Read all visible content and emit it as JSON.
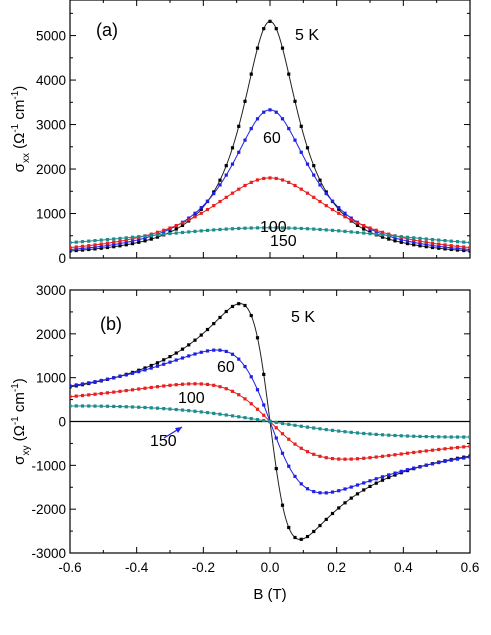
{
  "chart_data": [
    {
      "type": "line",
      "panel_label": "(a)",
      "ylabel": {
        "main": "σ",
        "sub": "xx",
        "unit_open": " (Ω",
        "unit_exp": "-1",
        "unit_mid": " cm",
        "unit_exp2": "-1",
        "unit_close": ")"
      },
      "xlim": [
        -0.6,
        0.6
      ],
      "ylim": [
        0,
        5800
      ],
      "y_ticks": [
        0,
        1000,
        2000,
        3000,
        4000,
        5000
      ],
      "grid": false,
      "model": "lorentzian",
      "series": [
        {
          "name": "5 K",
          "label": "5 K",
          "color": "#000000",
          "peak": 5320,
          "width": 0.105,
          "points": 65
        },
        {
          "name": "60",
          "label": "60",
          "color": "#1f1fe6",
          "peak": 3330,
          "width": 0.148,
          "points": 65
        },
        {
          "name": "100",
          "label": "100",
          "color": "#e62020",
          "peak": 1800,
          "width": 0.232,
          "points": 65
        },
        {
          "name": "150",
          "label": "150",
          "color": "#1e8c8c",
          "peak": 680,
          "width": 0.61,
          "points": 65
        }
      ]
    },
    {
      "type": "line",
      "panel_label": "(b)",
      "xlabel": "B (T)",
      "ylabel": {
        "main": "σ",
        "sub": "xy",
        "unit_open": " (Ω",
        "unit_exp": "-1",
        "unit_mid": " cm",
        "unit_exp2": "-1",
        "unit_close": ")"
      },
      "xlim": [
        -0.6,
        0.6
      ],
      "ylim": [
        -3000,
        3000
      ],
      "x_ticks": [
        -0.6,
        -0.4,
        -0.2,
        0.0,
        0.2,
        0.4,
        0.6
      ],
      "x_tick_labels": [
        "-0.6",
        "-0.4",
        "-0.2",
        "0.0",
        "0.2",
        "0.4",
        "0.6"
      ],
      "y_ticks": [
        -3000,
        -2000,
        -1000,
        0,
        1000,
        2000,
        3000
      ],
      "grid": false,
      "zero_line": true,
      "model": "odd_lorentzian",
      "series": [
        {
          "name": "5 K",
          "label": "5 K",
          "color": "#000000",
          "peak": 2690,
          "width": 0.09,
          "points": 65
        },
        {
          "name": "60",
          "label": "60",
          "color": "#1f1fe6",
          "peak": 1630,
          "width": 0.16,
          "points": 65
        },
        {
          "name": "100",
          "label": "100",
          "color": "#e62020",
          "peak": 860,
          "width": 0.225,
          "points": 65
        },
        {
          "name": "150",
          "label": "150",
          "color": "#1e8c8c",
          "peak": 355,
          "width": 0.6,
          "points": 65
        }
      ]
    }
  ]
}
